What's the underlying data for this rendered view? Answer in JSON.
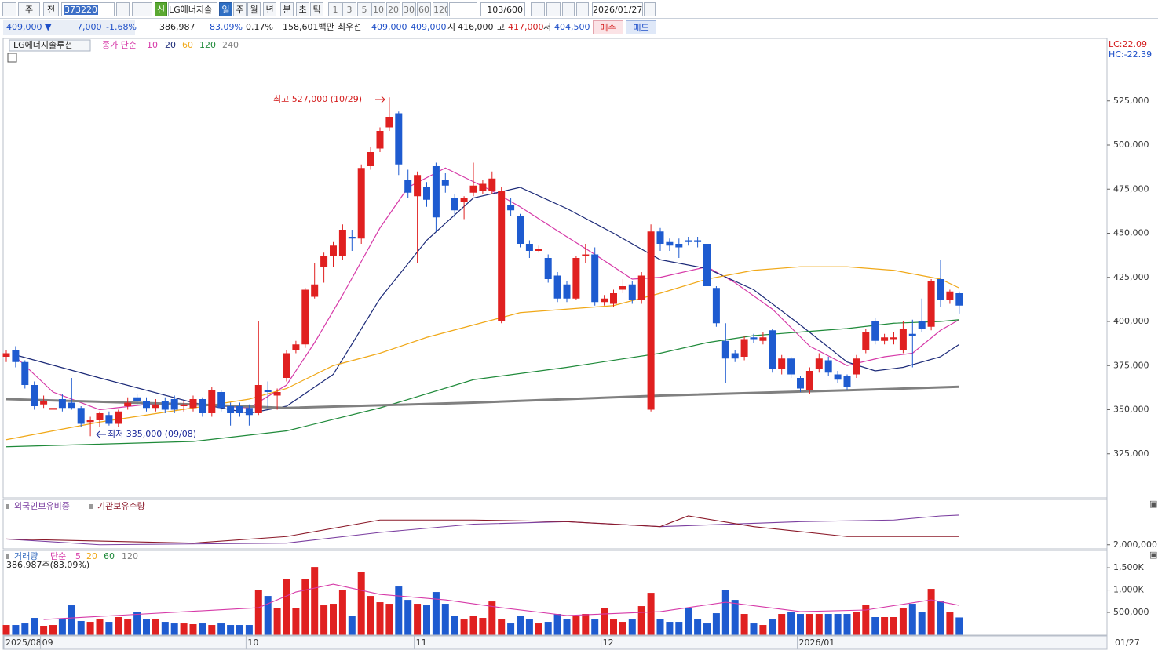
{
  "toolbar": {
    "period_type": "주",
    "prev": "전",
    "code": "373220",
    "new_badge": "신",
    "name": "LG에너지솔",
    "intervals": [
      "일",
      "주",
      "월",
      "년",
      "분",
      "초",
      "틱"
    ],
    "minutes": [
      "1",
      "3",
      "5",
      "10",
      "20",
      "30",
      "60",
      "120"
    ],
    "count": "103/600",
    "date": "2026/01/27"
  },
  "quote": {
    "price": "409,000 ▼",
    "change": "7,000",
    "change_rate": "-1.68%",
    "volume": "386,987",
    "volume_rate": "83.09%",
    "turnover_rate": "0.17%",
    "amount": "158,601백만",
    "best_label": "최우선",
    "best_ask": "409,000",
    "best_bid": "409,000",
    "open_label": "시",
    "open": "416,000",
    "high_label": "고",
    "high": "417,000",
    "low_label": "저",
    "low": "404,500",
    "buy": "매수",
    "sell": "매도"
  },
  "x_axis": [
    {
      "index": 0,
      "label": "2025/08"
    },
    {
      "index": 4,
      "label": "09"
    },
    {
      "index": 26,
      "label": "10"
    },
    {
      "index": 44,
      "label": "11"
    },
    {
      "index": 64,
      "label": "12"
    },
    {
      "index": 85,
      "label": "2026/01"
    }
  ],
  "last_date": "01/27",
  "chart_data": [
    {
      "type": "candlestick",
      "title": "LG에너지솔루션",
      "legend_prefix": "종가 단순",
      "up_color": "#e02020",
      "down_color": "#1e5bd0",
      "lc": "LC:22.09",
      "hc": "HC:-22.39",
      "annotations": [
        "최고 527,000 (10/29)",
        "최저 335,000 (09/08)"
      ],
      "ylim": [
        300000,
        560000
      ],
      "yticks": [
        {
          "value": 325000,
          "label": "325,000"
        },
        {
          "value": 350000,
          "label": "350,000"
        },
        {
          "value": 375000,
          "label": "375,000"
        },
        {
          "value": 400000,
          "label": "400,000"
        },
        {
          "value": 425000,
          "label": "425,000"
        },
        {
          "value": 450000,
          "label": "450,000"
        },
        {
          "value": 475000,
          "label": "475,000"
        },
        {
          "value": 500000,
          "label": "500,000"
        },
        {
          "value": 525000,
          "label": "525,000"
        }
      ],
      "open": [
        380000,
        384000,
        377000,
        364000,
        353000,
        350000,
        356000,
        354000,
        351000,
        343000,
        344000,
        347000,
        342000,
        352000,
        357000,
        355000,
        351000,
        355000,
        356000,
        352000,
        351000,
        356000,
        348000,
        360000,
        352000,
        352000,
        351000,
        348000,
        361000,
        358000,
        368000,
        384000,
        387000,
        414000,
        431000,
        437000,
        437000,
        448000,
        447000,
        488000,
        498000,
        510000,
        518000,
        480000,
        471000,
        476000,
        488000,
        480000,
        470000,
        468000,
        473000,
        474000,
        474000,
        400000,
        466000,
        460000,
        444000,
        440000,
        436000,
        426000,
        421000,
        413000,
        437000,
        438000,
        411000,
        410000,
        418000,
        421000,
        412000,
        350000,
        451000,
        445000,
        444000,
        446000,
        446000,
        444000,
        419000,
        389000,
        382000,
        380000,
        391000,
        389000,
        395000,
        373000,
        379000,
        368000,
        361000,
        373000,
        378000,
        370000,
        369000,
        370000,
        384000,
        400000,
        389000,
        390000,
        384000,
        393000,
        400000,
        397000,
        424000,
        412000,
        416000
      ],
      "high": [
        384000,
        386000,
        378000,
        366000,
        358000,
        353000,
        359000,
        368000,
        352000,
        346000,
        349000,
        349000,
        350000,
        357000,
        359000,
        357000,
        356000,
        357000,
        358000,
        355000,
        358000,
        357000,
        363000,
        361000,
        354000,
        354000,
        353000,
        400000,
        366000,
        362000,
        384000,
        389000,
        419000,
        433000,
        439000,
        445000,
        455000,
        452000,
        489000,
        499000,
        510000,
        527000,
        519000,
        486000,
        485000,
        479000,
        490000,
        484000,
        472000,
        471000,
        490000,
        480000,
        485000,
        476000,
        470000,
        461000,
        446000,
        443000,
        438000,
        428000,
        423000,
        437000,
        444000,
        442000,
        415000,
        418000,
        424000,
        423000,
        428000,
        455000,
        453000,
        447000,
        447000,
        448000,
        448000,
        446000,
        420000,
        399000,
        384000,
        392000,
        393000,
        394000,
        396000,
        381000,
        380000,
        369000,
        374000,
        382000,
        380000,
        372000,
        370000,
        381000,
        396000,
        402000,
        393000,
        394000,
        400000,
        401000,
        413000,
        424000,
        435000,
        418000,
        417000
      ],
      "low": [
        377000,
        374000,
        362000,
        350000,
        351000,
        347000,
        349000,
        350000,
        340000,
        335000,
        340000,
        341000,
        340000,
        350000,
        353000,
        349000,
        349000,
        348000,
        348000,
        349000,
        349000,
        346000,
        346000,
        349000,
        341000,
        346000,
        341000,
        347000,
        351000,
        350000,
        366000,
        382000,
        385000,
        413000,
        422000,
        431000,
        435000,
        440000,
        444000,
        486000,
        496000,
        508000,
        483000,
        470000,
        433000,
        465000,
        451000,
        473000,
        459000,
        458000,
        471000,
        472000,
        472000,
        399000,
        460000,
        442000,
        436000,
        439000,
        422000,
        411000,
        411000,
        412000,
        433000,
        409000,
        409000,
        408000,
        416000,
        410000,
        410000,
        349000,
        440000,
        440000,
        436000,
        443000,
        442000,
        418000,
        397000,
        365000,
        377000,
        378000,
        388000,
        387000,
        371000,
        370000,
        368000,
        360000,
        359000,
        371000,
        369000,
        365000,
        361000,
        368000,
        382000,
        387000,
        387000,
        387000,
        382000,
        374000,
        394000,
        395000,
        408000,
        410000,
        404500
      ],
      "close": [
        382000,
        377000,
        364000,
        352000,
        355000,
        351000,
        351000,
        351000,
        342000,
        344000,
        348000,
        342000,
        349000,
        354000,
        355000,
        351000,
        353000,
        350000,
        350000,
        353000,
        356000,
        348000,
        361000,
        351000,
        348000,
        348000,
        347000,
        364000,
        360000,
        360000,
        382000,
        387000,
        418000,
        421000,
        437000,
        443000,
        452000,
        447000,
        487000,
        496000,
        508000,
        516000,
        489000,
        473000,
        483000,
        469000,
        459000,
        477000,
        463000,
        470000,
        477000,
        478000,
        481000,
        474000,
        463000,
        444000,
        440000,
        441000,
        424000,
        413000,
        413000,
        436000,
        438000,
        411000,
        413000,
        416000,
        420000,
        412000,
        426000,
        451000,
        444000,
        443000,
        442000,
        445000,
        445000,
        420000,
        399000,
        379000,
        379000,
        390000,
        390000,
        391000,
        373000,
        379000,
        370000,
        362000,
        372000,
        379000,
        371000,
        367000,
        363000,
        379000,
        394000,
        389000,
        391000,
        391000,
        396000,
        392000,
        396000,
        423000,
        412000,
        417000,
        409000
      ],
      "series": [
        {
          "name": "10",
          "color": "#d63aa8",
          "x": [
            1,
            5,
            10,
            15,
            20,
            26,
            30,
            33,
            36,
            40,
            43,
            47,
            52,
            55,
            60,
            63,
            67,
            70,
            75,
            78,
            82,
            86,
            90,
            94,
            97,
            100,
            102
          ],
          "values": [
            380000,
            360000,
            350000,
            353000,
            353000,
            351000,
            364000,
            388000,
            415000,
            453000,
            476000,
            487000,
            474000,
            465000,
            448000,
            438000,
            424000,
            425000,
            431000,
            422000,
            407000,
            386000,
            375000,
            380000,
            382000,
            395000,
            401000
          ]
        },
        {
          "name": "20",
          "color": "#1c2a78",
          "x": [
            1,
            10,
            20,
            26,
            30,
            35,
            40,
            45,
            50,
            55,
            60,
            65,
            70,
            75,
            80,
            85,
            90,
            93,
            96,
            100,
            102
          ],
          "values": [
            381000,
            368000,
            354000,
            348000,
            352000,
            370000,
            413000,
            446000,
            470000,
            476000,
            464000,
            450000,
            435000,
            430000,
            418000,
            398000,
            377000,
            372000,
            374000,
            380000,
            387000
          ]
        },
        {
          "name": "60",
          "color": "#f0a818",
          "x": [
            0,
            10,
            20,
            26,
            30,
            35,
            40,
            45,
            50,
            55,
            60,
            65,
            70,
            75,
            80,
            85,
            90,
            95,
            100,
            102
          ],
          "values": [
            333000,
            343000,
            351000,
            356000,
            362000,
            375000,
            382000,
            391000,
            398000,
            405000,
            407000,
            409000,
            416000,
            424000,
            429000,
            431000,
            431000,
            429000,
            424000,
            419000
          ]
        },
        {
          "name": "120",
          "color": "#1f8a3a",
          "x": [
            0,
            20,
            30,
            40,
            50,
            60,
            70,
            75,
            80,
            85,
            90,
            95,
            100,
            102
          ],
          "values": [
            329000,
            332000,
            338000,
            351000,
            367000,
            374000,
            382000,
            388000,
            392000,
            394000,
            396000,
            399000,
            400000,
            401000
          ]
        },
        {
          "name": "240",
          "color": "#808080",
          "x": [
            0,
            20,
            30,
            50,
            70,
            90,
            102
          ],
          "values": [
            356000,
            353000,
            351000,
            354000,
            358000,
            361000,
            363000
          ]
        }
      ]
    },
    {
      "type": "line",
      "ylim": [
        1950000,
        2550000
      ],
      "yticks": [
        {
          "value": 2000000,
          "label": "2,000,000"
        }
      ],
      "series": [
        {
          "name": "외국인보유비중",
          "color": "#7b3fa0",
          "x": [
            0,
            10,
            30,
            40,
            50,
            60,
            70,
            85,
            95,
            100,
            102
          ],
          "values": [
            2070000,
            2000000,
            2020000,
            2150000,
            2250000,
            2280000,
            2220000,
            2280000,
            2300000,
            2350000,
            2360000
          ]
        },
        {
          "name": "기관보유수량",
          "color": "#8b1a2a",
          "x": [
            0,
            20,
            30,
            40,
            50,
            60,
            70,
            73,
            80,
            90,
            102
          ],
          "values": [
            2070000,
            2020000,
            2100000,
            2300000,
            2300000,
            2280000,
            2220000,
            2350000,
            2220000,
            2100000,
            2100000
          ]
        }
      ]
    },
    {
      "type": "bar",
      "title": "거래량",
      "legend_prefix": "단순",
      "legend_periods": [
        "20",
        "60",
        "120"
      ],
      "volume_label": "386,987주(83.09%)",
      "ylim": [
        0,
        1870000
      ],
      "yticks": [
        {
          "value": 500000,
          "label": "500,000"
        },
        {
          "value": 1000000,
          "label": "1,000K"
        },
        {
          "value": 1500000,
          "label": "1,500K"
        }
      ],
      "values": [
        219000,
        219000,
        254000,
        377000,
        202000,
        219000,
        342000,
        658000,
        307000,
        289000,
        342000,
        289000,
        395000,
        342000,
        517000,
        342000,
        360000,
        289000,
        254000,
        254000,
        237000,
        254000,
        219000,
        254000,
        219000,
        219000,
        219000,
        1008000,
        868000,
        605000,
        1254000,
        605000,
        1254000,
        1517000,
        658000,
        693000,
        1008000,
        430000,
        1412000,
        868000,
        728000,
        693000,
        1079000,
        780000,
        693000,
        658000,
        956000,
        693000,
        430000,
        342000,
        430000,
        377000,
        745000,
        342000,
        254000,
        430000,
        342000,
        254000,
        289000,
        465000,
        342000,
        430000,
        465000,
        342000,
        605000,
        342000,
        289000,
        342000,
        640000,
        938000,
        342000,
        289000,
        289000,
        605000,
        342000,
        254000,
        482000,
        1008000,
        780000,
        465000,
        254000,
        219000,
        342000,
        465000,
        517000,
        465000,
        465000,
        465000,
        465000,
        465000,
        465000,
        517000,
        675000,
        395000,
        395000,
        395000,
        588000,
        693000,
        500000,
        1026000,
        763000,
        500000,
        386987
      ],
      "series": [
        {
          "name": "5",
          "color": "#d63aa8",
          "x": [
            4,
            27,
            31,
            35,
            40,
            47,
            53,
            60,
            70,
            77,
            85,
            92,
            99,
            102
          ],
          "values": [
            342000,
            605000,
            956000,
            1131000,
            903000,
            780000,
            605000,
            430000,
            517000,
            728000,
            517000,
            553000,
            780000,
            658000
          ]
        }
      ]
    }
  ]
}
